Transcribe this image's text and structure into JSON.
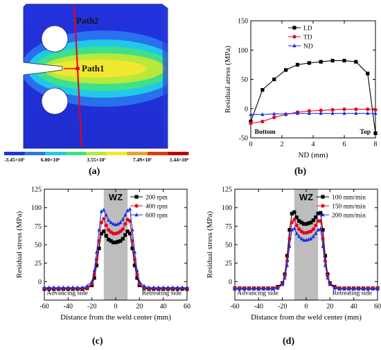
{
  "panels": {
    "a": {
      "label": "(a)"
    },
    "b": {
      "label": "(b)"
    },
    "c": {
      "label": "(c)"
    },
    "d": {
      "label": "(d)"
    }
  },
  "fem": {
    "path1_label": "Path1",
    "path2_label": "Path2",
    "colorbar_ticks": [
      "-3.45×10⁷",
      "6.00×10⁶",
      "3.55×10⁷",
      "7.49×10⁷",
      "1.44×10⁸"
    ],
    "colors": [
      "#2233dd",
      "#2a78f0",
      "#22c8e8",
      "#3ee08a",
      "#b8e83a",
      "#f0e830",
      "#f0a020",
      "#e03a1a",
      "#c00000"
    ]
  },
  "chart_data": [
    {
      "id": "b",
      "type": "line",
      "title": "",
      "xlabel": "ND (mm)",
      "ylabel": "Residual atress (MPa)",
      "xlim": [
        0,
        8
      ],
      "ylim": [
        -50,
        150
      ],
      "xticks": [
        0,
        2,
        4,
        6,
        8
      ],
      "yticks": [
        -50,
        0,
        50,
        100,
        150
      ],
      "legend": "top-right",
      "annotations": [
        {
          "text": "Bottom",
          "x": 0.25,
          "y": -43
        },
        {
          "text": "Top",
          "x": 7.0,
          "y": -43
        }
      ],
      "series": [
        {
          "name": "LD",
          "color": "#000000",
          "marker": "square",
          "x": [
            0,
            0.75,
            1.5,
            2.25,
            3,
            3.75,
            4.5,
            5.25,
            6,
            6.75,
            7.5,
            8
          ],
          "y": [
            -22,
            32,
            50,
            66,
            75,
            78,
            80,
            82,
            82,
            80,
            60,
            -42
          ]
        },
        {
          "name": "TD",
          "color": "#e8001c",
          "marker": "circle",
          "x": [
            0,
            0.75,
            1.5,
            2.25,
            3,
            3.75,
            4.5,
            5.25,
            6,
            6.75,
            7.5,
            8
          ],
          "y": [
            -25,
            -22,
            -15,
            -10,
            -6,
            -4,
            -3,
            -2,
            -1,
            -1,
            -1,
            -2
          ]
        },
        {
          "name": "ND",
          "color": "#1c2ee8",
          "marker": "triangle",
          "x": [
            0,
            0.75,
            1.5,
            2.25,
            3,
            3.75,
            4.5,
            5.25,
            6,
            6.75,
            7.5,
            8
          ],
          "y": [
            -10,
            -10,
            -9,
            -9,
            -8,
            -8,
            -8,
            -8,
            -8,
            -8,
            -8,
            -8
          ]
        }
      ]
    },
    {
      "id": "c",
      "type": "line",
      "title": "",
      "xlabel": "Distance from the weld center (mm)",
      "ylabel": "Residual stress (MPa)",
      "xlim": [
        -60,
        60
      ],
      "ylim": [
        -25,
        125
      ],
      "xticks": [
        -60,
        -40,
        -20,
        0,
        20,
        40,
        60
      ],
      "yticks": [
        0,
        25,
        50,
        75,
        100,
        125
      ],
      "shaded_region": {
        "x": [
          -10,
          10
        ],
        "label": "WZ"
      },
      "legend": "top-right",
      "annotations": [
        {
          "text": "Advancing side",
          "x": -58,
          "y": -18
        },
        {
          "text": "Retreating side",
          "x": 22,
          "y": -18
        }
      ],
      "series": [
        {
          "name": "200 rpm",
          "color": "#000000",
          "marker": "square",
          "x": [
            -60,
            -56,
            -52,
            -48,
            -44,
            -40,
            -36,
            -32,
            -28,
            -24,
            -20,
            -18,
            -16,
            -14,
            -12,
            -10,
            -8,
            -6,
            -4,
            -2,
            0,
            2,
            4,
            6,
            8,
            10,
            12,
            14,
            16,
            18,
            20,
            24,
            28,
            32,
            36,
            40,
            44,
            48,
            52,
            56,
            60
          ],
          "y": [
            -10,
            -10,
            -10,
            -10,
            -10,
            -10,
            -10,
            -10,
            -10,
            -9,
            -5,
            5,
            22,
            45,
            65,
            68,
            62,
            57,
            55,
            53,
            53,
            54,
            55,
            58,
            63,
            68,
            65,
            45,
            22,
            5,
            -5,
            -9,
            -10,
            -10,
            -10,
            -10,
            -10,
            -10,
            -10,
            -10,
            -10
          ]
        },
        {
          "name": "400 rpm",
          "color": "#e8001c",
          "marker": "circle",
          "x": [
            -60,
            -56,
            -52,
            -48,
            -44,
            -40,
            -36,
            -32,
            -28,
            -24,
            -20,
            -18,
            -16,
            -14,
            -12,
            -10,
            -8,
            -6,
            -4,
            -2,
            0,
            2,
            4,
            6,
            8,
            10,
            12,
            14,
            16,
            18,
            20,
            24,
            28,
            32,
            36,
            40,
            44,
            48,
            52,
            56,
            60
          ],
          "y": [
            -9,
            -9,
            -9,
            -9,
            -9,
            -9,
            -9,
            -9,
            -9,
            -8,
            -3,
            10,
            30,
            55,
            80,
            85,
            76,
            70,
            67,
            65,
            65,
            66,
            68,
            71,
            78,
            84,
            82,
            55,
            30,
            10,
            -3,
            -8,
            -9,
            -9,
            -9,
            -9,
            -9,
            -9,
            -9,
            -9,
            -9
          ]
        },
        {
          "name": "600 rpm",
          "color": "#1c2ee8",
          "marker": "triangle",
          "x": [
            -60,
            -56,
            -52,
            -48,
            -44,
            -40,
            -36,
            -32,
            -28,
            -24,
            -20,
            -18,
            -16,
            -14,
            -12,
            -10,
            -8,
            -6,
            -4,
            -2,
            0,
            2,
            4,
            6,
            8,
            10,
            12,
            14,
            16,
            18,
            20,
            24,
            28,
            32,
            36,
            40,
            44,
            48,
            52,
            56,
            60
          ],
          "y": [
            -8,
            -8,
            -8,
            -8,
            -8,
            -8,
            -8,
            -8,
            -8,
            -6,
            0,
            15,
            40,
            70,
            95,
            97,
            90,
            83,
            80,
            78,
            77,
            78,
            80,
            84,
            90,
            96,
            98,
            70,
            40,
            15,
            0,
            -6,
            -8,
            -8,
            -8,
            -8,
            -8,
            -8,
            -8,
            -8,
            -8
          ]
        }
      ]
    },
    {
      "id": "d",
      "type": "line",
      "title": "",
      "xlabel": "Distance from the weld center (mm)",
      "ylabel": "Residual stress (MPa)",
      "xlim": [
        -60,
        60
      ],
      "ylim": [
        -25,
        125
      ],
      "xticks": [
        -60,
        -40,
        -20,
        0,
        20,
        40,
        60
      ],
      "yticks": [
        0,
        25,
        50,
        75,
        100,
        125
      ],
      "shaded_region": {
        "x": [
          -10,
          10
        ],
        "label": "WZ"
      },
      "legend": "top-right",
      "annotations": [
        {
          "text": "Advancing side",
          "x": -58,
          "y": -18
        },
        {
          "text": "Retreating side",
          "x": 22,
          "y": -18
        }
      ],
      "series": [
        {
          "name": "100 mm/min",
          "color": "#000000",
          "marker": "square",
          "x": [
            -60,
            -56,
            -52,
            -48,
            -44,
            -40,
            -36,
            -32,
            -28,
            -24,
            -20,
            -18,
            -16,
            -14,
            -12,
            -10,
            -8,
            -6,
            -4,
            -2,
            0,
            2,
            4,
            6,
            8,
            10,
            12,
            14,
            16,
            18,
            20,
            24,
            28,
            32,
            36,
            40,
            44,
            48,
            52,
            56,
            60
          ],
          "y": [
            -9,
            -9,
            -9,
            -9,
            -9,
            -9,
            -9,
            -9,
            -9,
            -7,
            -2,
            10,
            35,
            70,
            92,
            94,
            87,
            82,
            80,
            78,
            78,
            79,
            80,
            83,
            87,
            92,
            93,
            70,
            35,
            10,
            -2,
            -7,
            -9,
            -9,
            -9,
            -9,
            -9,
            -9,
            -9,
            -9,
            -9
          ]
        },
        {
          "name": "150 mm/min",
          "color": "#e8001c",
          "marker": "circle",
          "x": [
            -60,
            -56,
            -52,
            -48,
            -44,
            -40,
            -36,
            -32,
            -28,
            -24,
            -20,
            -18,
            -16,
            -14,
            -12,
            -10,
            -8,
            -6,
            -4,
            -2,
            0,
            2,
            4,
            6,
            8,
            10,
            12,
            14,
            16,
            18,
            20,
            24,
            28,
            32,
            36,
            40,
            44,
            48,
            52,
            56,
            60
          ],
          "y": [
            -9,
            -9,
            -9,
            -9,
            -9,
            -9,
            -9,
            -9,
            -9,
            -8,
            -3,
            8,
            28,
            58,
            80,
            84,
            76,
            71,
            68,
            66,
            66,
            67,
            68,
            71,
            76,
            82,
            82,
            58,
            28,
            8,
            -3,
            -8,
            -9,
            -9,
            -9,
            -9,
            -9,
            -9,
            -9,
            -9,
            -9
          ]
        },
        {
          "name": "200 mm/min",
          "color": "#1c2ee8",
          "marker": "triangle",
          "x": [
            -60,
            -56,
            -52,
            -48,
            -44,
            -40,
            -36,
            -32,
            -28,
            -24,
            -20,
            -18,
            -16,
            -14,
            -12,
            -10,
            -8,
            -6,
            -4,
            -2,
            0,
            2,
            4,
            6,
            8,
            10,
            12,
            14,
            16,
            18,
            20,
            24,
            28,
            32,
            36,
            40,
            44,
            48,
            52,
            56,
            60
          ],
          "y": [
            -10,
            -10,
            -10,
            -10,
            -10,
            -10,
            -10,
            -10,
            -10,
            -9,
            -4,
            5,
            22,
            48,
            70,
            72,
            65,
            61,
            58,
            56,
            56,
            57,
            58,
            61,
            65,
            70,
            71,
            48,
            22,
            5,
            -4,
            -9,
            -10,
            -10,
            -10,
            -10,
            -10,
            -10,
            -10,
            -10,
            -10
          ]
        }
      ]
    }
  ]
}
